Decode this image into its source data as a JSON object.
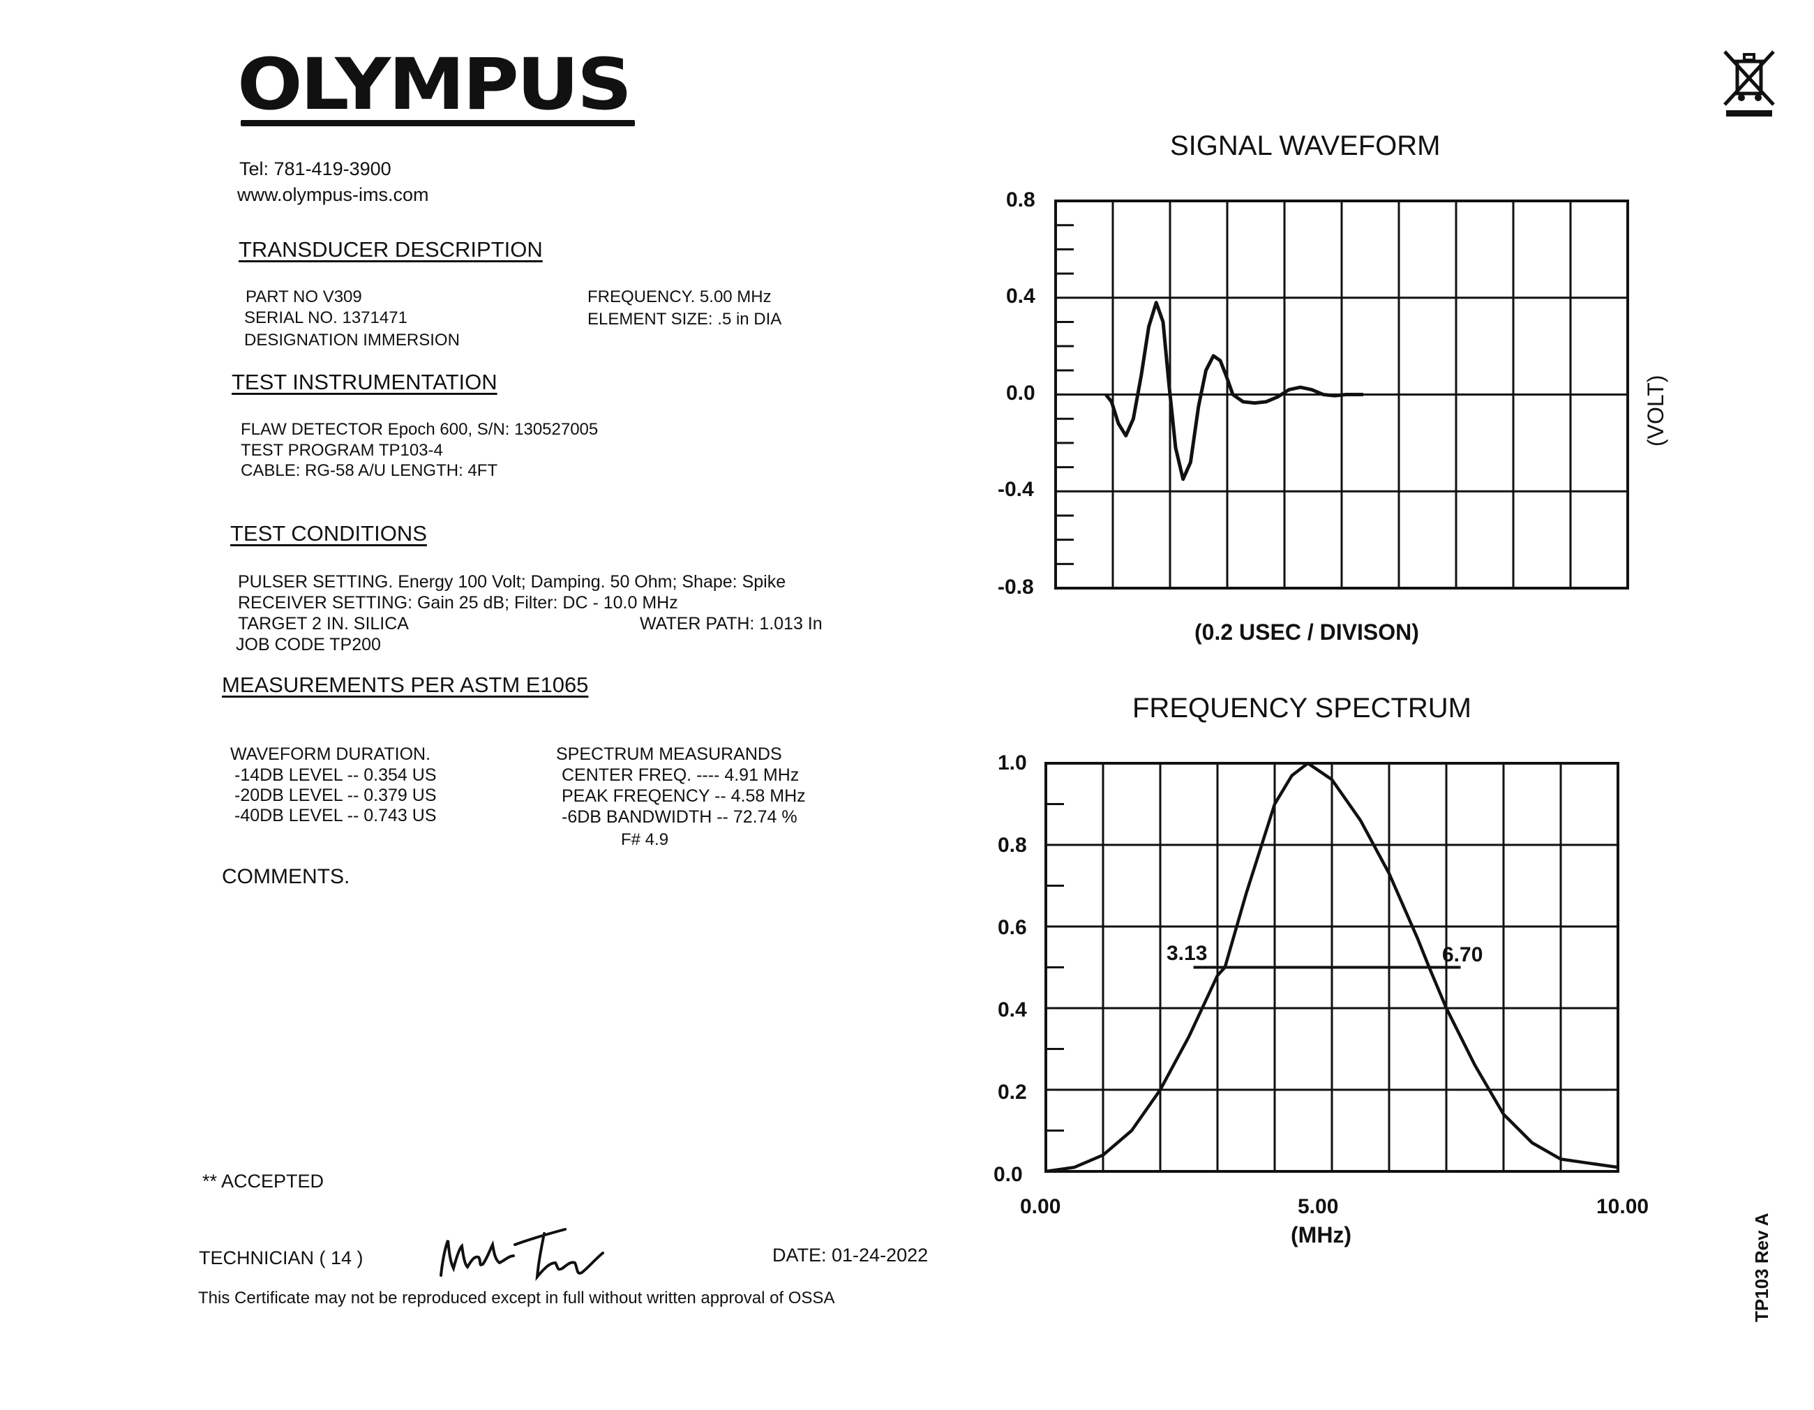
{
  "company": {
    "logo_text": "OLYMPUS",
    "tel": "Tel: 781-419-3900",
    "web": "www.olympus-ims.com"
  },
  "transducer": {
    "heading": "TRANSDUCER DESCRIPTION",
    "part_no": "PART NO  V309",
    "serial_no": "SERIAL NO. 1371471",
    "designation": "DESIGNATION  IMMERSION",
    "frequency": "FREQUENCY. 5.00 MHz",
    "element_size": "ELEMENT SIZE: .5 in  DIA"
  },
  "instrumentation": {
    "heading": "TEST INSTRUMENTATION",
    "flaw_detector": "FLAW DETECTOR  Epoch 600, S/N: 130527005",
    "test_program": "TEST PROGRAM  TP103-4",
    "cable": "CABLE: RG-58 A/U LENGTH: 4FT"
  },
  "conditions": {
    "heading": "TEST CONDITIONS",
    "pulser": "PULSER SETTING.  Energy  100 Volt; Damping. 50 Ohm; Shape: Spike",
    "receiver": "RECEIVER SETTING: Gain  25 dB; Filter: DC - 10.0 MHz",
    "target": "TARGET  2 IN. SILICA",
    "water_path": "WATER PATH: 1.013 In",
    "job_code": "JOB CODE  TP200"
  },
  "measurements": {
    "heading": "MEASUREMENTS PER ASTM E1065",
    "waveform_title": "WAVEFORM DURATION.",
    "waveform": [
      "-14DB LEVEL --  0.354 US",
      "-20DB LEVEL --  0.379 US",
      "-40DB LEVEL --  0.743 US"
    ],
    "spectrum_title": "SPECTRUM MEASURANDS",
    "spectrum": [
      "CENTER FREQ. ----  4.91 MHz",
      "PEAK FREQENCY --  4.58 MHz",
      "-6DB BANDWIDTH --  72.74 %"
    ],
    "f_number": "F# 4.9"
  },
  "comments_label": "COMMENTS.",
  "accepted": "** ACCEPTED",
  "technician": "TECHNICIAN ( 14 )",
  "date": "DATE: 01-24-2022",
  "footer": "This Certificate may not be reproduced except in full without written approval of OSSA",
  "form_id": "TP103 Rev  A",
  "chart_data": [
    {
      "type": "line",
      "title": "SIGNAL WAVEFORM",
      "xlabel": "(0.2 USEC / DIVISON)",
      "ylabel": "(VOLT)",
      "ylim": [
        -0.8,
        0.8
      ],
      "yticks": [
        "0.8",
        "0.4",
        "0.0",
        "-0.4",
        "-0.8"
      ],
      "x_divisions": 10,
      "grid": true,
      "x_unit": "division",
      "x": [
        0,
        0.1,
        0.22,
        0.35,
        0.48,
        0.62,
        0.75,
        0.88,
        1.0,
        1.1,
        1.22,
        1.35,
        1.48,
        1.62,
        1.75,
        1.88,
        2.0,
        2.1,
        2.22,
        2.4,
        2.6,
        2.8,
        3.0,
        3.2,
        3.4,
        3.6,
        3.8,
        4.0,
        4.2,
        4.5
      ],
      "y": [
        0.0,
        -0.03,
        -0.12,
        -0.17,
        -0.1,
        0.08,
        0.28,
        0.38,
        0.3,
        0.05,
        -0.22,
        -0.35,
        -0.28,
        -0.05,
        0.1,
        0.16,
        0.14,
        0.08,
        0.0,
        -0.03,
        -0.035,
        -0.03,
        -0.01,
        0.02,
        0.03,
        0.02,
        0.0,
        -0.005,
        0.0,
        0.0
      ]
    },
    {
      "type": "line",
      "title": "FREQUENCY SPECTRUM",
      "xlabel": "(MHz)",
      "xlim": [
        0,
        10
      ],
      "ylim": [
        0,
        1.0
      ],
      "xticks": [
        "0.00",
        "5.00",
        "10.00"
      ],
      "yticks": [
        "1.0",
        "0.8",
        "0.6",
        "0.4",
        "0.2",
        "0.0"
      ],
      "grid": true,
      "x": [
        0,
        0.5,
        1.0,
        1.5,
        2.0,
        2.5,
        3.0,
        3.13,
        3.5,
        4.0,
        4.3,
        4.58,
        5.0,
        5.5,
        6.0,
        6.5,
        6.7,
        7.0,
        7.5,
        8.0,
        8.5,
        9.0,
        9.5,
        10.0
      ],
      "y": [
        0.0,
        0.01,
        0.04,
        0.1,
        0.2,
        0.33,
        0.48,
        0.5,
        0.68,
        0.9,
        0.97,
        1.0,
        0.96,
        0.86,
        0.73,
        0.57,
        0.5,
        0.4,
        0.26,
        0.14,
        0.07,
        0.03,
        0.02,
        0.01
      ],
      "bandwidth": {
        "low": 3.13,
        "high": 6.7,
        "level": 0.5,
        "low_label": "3.13",
        "high_label": "6.70"
      }
    }
  ]
}
